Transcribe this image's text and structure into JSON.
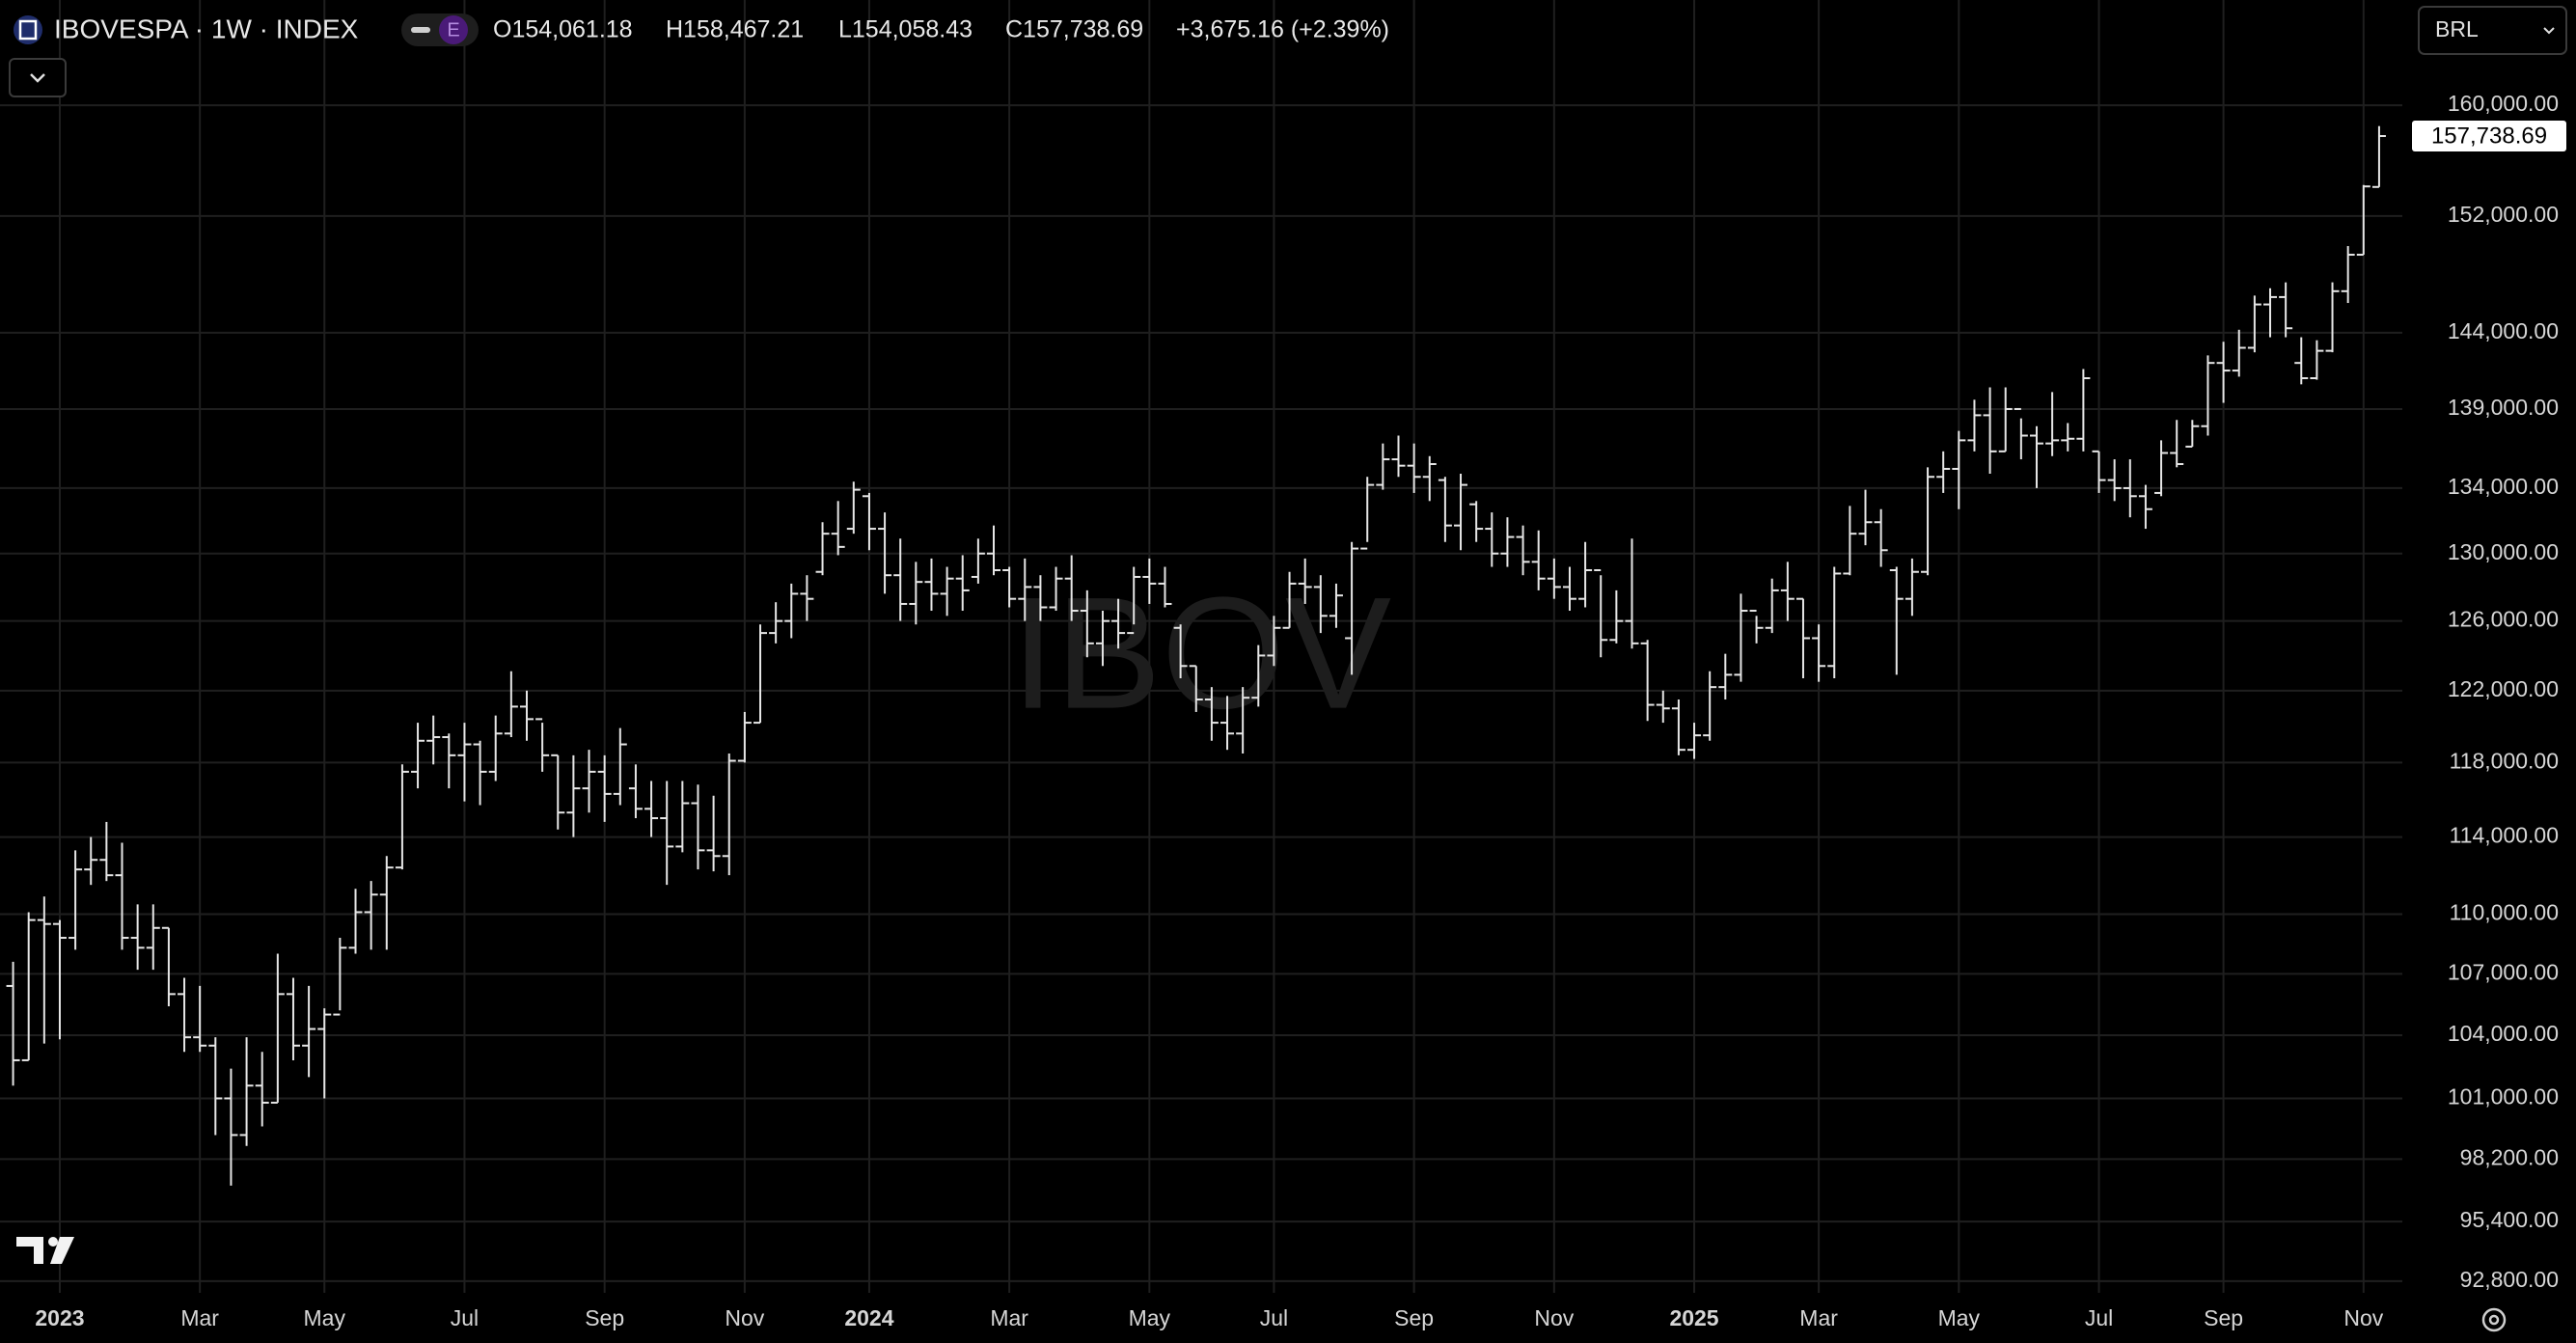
{
  "header": {
    "badge": "E",
    "ohlc": [
      "O154,061.18",
      "H158,467.21",
      "L154,058.43",
      "C157,738.69"
    ],
    "change": "+3,675.16 (+2.39%)",
    "currency": "BRL",
    "watermark": "IBOV"
  },
  "chart_data": {
    "type": "ohlc",
    "title": "IBOVESPA · 1W · INDEX",
    "color": "#e6e6e6",
    "log_scale": true,
    "grid": true,
    "last_value_label": "157,738.69",
    "categories": [
      null,
      null,
      null,
      "2023",
      null,
      null,
      null,
      null,
      null,
      null,
      null,
      null,
      "Mar",
      null,
      null,
      null,
      null,
      null,
      null,
      null,
      "May",
      null,
      null,
      null,
      null,
      null,
      null,
      null,
      null,
      "Jul",
      null,
      null,
      null,
      null,
      null,
      null,
      null,
      null,
      "Sep",
      null,
      null,
      null,
      null,
      null,
      null,
      null,
      null,
      "Nov",
      null,
      null,
      null,
      null,
      null,
      null,
      null,
      "2024",
      null,
      null,
      null,
      null,
      null,
      null,
      null,
      null,
      "Mar",
      null,
      null,
      null,
      null,
      null,
      null,
      null,
      null,
      "May",
      null,
      null,
      null,
      null,
      null,
      null,
      null,
      "Jul",
      null,
      null,
      null,
      null,
      null,
      null,
      null,
      null,
      "Sep",
      null,
      null,
      null,
      null,
      null,
      null,
      null,
      null,
      "Nov",
      null,
      null,
      null,
      null,
      null,
      null,
      null,
      null,
      "2025",
      null,
      null,
      null,
      null,
      null,
      null,
      null,
      "Mar",
      null,
      null,
      null,
      null,
      null,
      null,
      null,
      null,
      "May",
      null,
      null,
      null,
      null,
      null,
      null,
      null,
      null,
      "Jul",
      null,
      null,
      null,
      null,
      null,
      null,
      null,
      "Sep",
      null,
      null,
      null,
      null,
      null,
      null,
      null,
      null,
      "Nov",
      null
    ],
    "open": [
      106400,
      102800,
      109700,
      109500,
      108800,
      112300,
      112800,
      112000,
      108800,
      108300,
      109300,
      106000,
      103900,
      103500,
      101000,
      99300,
      101600,
      100800,
      106000,
      103500,
      104300,
      105000,
      108300,
      110100,
      111000,
      112400,
      117500,
      119200,
      119400,
      118400,
      119000,
      117500,
      119600,
      121100,
      120400,
      118400,
      115300,
      116600,
      117500,
      116300,
      116600,
      115500,
      115000,
      113500,
      115800,
      113300,
      113000,
      118100,
      120200,
      125300,
      126000,
      127600,
      128900,
      131200,
      131500,
      133500,
      131500,
      128700,
      127000,
      128300,
      127600,
      128500,
      128600,
      130000,
      129000,
      127300,
      128000,
      126800,
      128500,
      126600,
      124700,
      126000,
      125300,
      128600,
      128200,
      125600,
      123400,
      121500,
      120200,
      119600,
      121600,
      124000,
      125600,
      128200,
      128000,
      126300,
      125000,
      130300,
      134200,
      135800,
      135400,
      134700,
      134500,
      131700,
      133000,
      131500,
      130000,
      131000,
      129500,
      128500,
      128000,
      127300,
      129000,
      124900,
      126000,
      124700,
      121200,
      121000,
      118700,
      119500,
      122200,
      122900,
      126600,
      125600,
      127800,
      127300,
      125000,
      123400,
      128800,
      131200,
      131900,
      129000,
      127300,
      128900,
      134700,
      135200,
      137000,
      138600,
      136300,
      139000,
      137300,
      136800,
      137000,
      137100,
      136300,
      134500,
      134000,
      133500,
      133700,
      136200,
      136600,
      137900,
      142000,
      141500,
      143000,
      145900,
      146400,
      142000,
      141000,
      142800,
      146800,
      149300,
      154061.18
    ],
    "high": [
      107600,
      110100,
      110900,
      109700,
      113300,
      114000,
      114800,
      113700,
      110500,
      110500,
      109300,
      106800,
      106400,
      103900,
      102400,
      103900,
      103200,
      108000,
      106800,
      106400,
      105300,
      108800,
      111300,
      111700,
      113000,
      117900,
      120200,
      120600,
      119600,
      120200,
      119200,
      120600,
      123100,
      122000,
      120200,
      118400,
      118400,
      118700,
      118400,
      119900,
      117900,
      117000,
      117000,
      117000,
      116800,
      116200,
      118500,
      120800,
      125800,
      127100,
      128200,
      128700,
      131900,
      133200,
      134400,
      133700,
      132500,
      130900,
      129500,
      129700,
      129200,
      129900,
      130900,
      131700,
      129200,
      129700,
      128700,
      129200,
      129900,
      127800,
      126600,
      127300,
      129200,
      129700,
      129200,
      125800,
      123400,
      122200,
      121700,
      122200,
      124600,
      126300,
      128900,
      129700,
      128700,
      128200,
      130700,
      134700,
      136800,
      137300,
      136800,
      136000,
      134700,
      134900,
      133200,
      132500,
      132200,
      131700,
      131400,
      129700,
      129200,
      130700,
      128700,
      127800,
      130900,
      124900,
      122000,
      121500,
      120200,
      123100,
      124100,
      127600,
      126300,
      128500,
      129500,
      127300,
      125800,
      129200,
      132900,
      133900,
      132700,
      129200,
      129700,
      135300,
      136300,
      137600,
      139600,
      140400,
      140400,
      138400,
      137900,
      140100,
      138100,
      141600,
      136300,
      135800,
      135800,
      134200,
      137000,
      138300,
      138300,
      142500,
      143400,
      144200,
      146500,
      147000,
      147400,
      143700,
      143500,
      147400,
      149900,
      154200,
      158467.21
    ],
    "low": [
      101600,
      102800,
      103600,
      103800,
      108200,
      111500,
      111700,
      108200,
      107200,
      107200,
      105400,
      103200,
      103200,
      99300,
      97000,
      98800,
      99700,
      100800,
      102800,
      102000,
      101000,
      105200,
      108000,
      108200,
      108200,
      112300,
      116600,
      117900,
      116600,
      115900,
      115700,
      117000,
      119400,
      119200,
      117500,
      114400,
      114000,
      115300,
      114800,
      115700,
      115000,
      114000,
      111500,
      113200,
      112300,
      112200,
      112000,
      118000,
      120200,
      124700,
      125000,
      126000,
      128700,
      129900,
      131200,
      130200,
      127600,
      126000,
      125800,
      126600,
      126300,
      126600,
      128200,
      128700,
      126800,
      126000,
      126000,
      126600,
      126000,
      123900,
      123400,
      124400,
      125800,
      127000,
      126800,
      122700,
      120800,
      119200,
      118700,
      118500,
      121100,
      123400,
      125600,
      127000,
      125300,
      125600,
      122900,
      130700,
      133900,
      134700,
      133700,
      133200,
      130700,
      130200,
      130700,
      129200,
      129200,
      128700,
      127800,
      127300,
      126600,
      126800,
      123900,
      124700,
      124400,
      120300,
      120200,
      118400,
      118200,
      119200,
      121500,
      122500,
      124700,
      125300,
      126000,
      122700,
      122500,
      122700,
      128700,
      130500,
      129200,
      122900,
      126300,
      128700,
      133700,
      132700,
      136300,
      134900,
      136300,
      135800,
      134000,
      136000,
      136300,
      136300,
      133700,
      133200,
      132200,
      131500,
      133500,
      135300,
      136600,
      137300,
      139400,
      141100,
      142700,
      143700,
      143700,
      140600,
      140900,
      142700,
      146000,
      149300,
      154058.43
    ],
    "close": [
      102800,
      109700,
      109500,
      108800,
      112300,
      112800,
      112000,
      108800,
      108300,
      109300,
      106000,
      103900,
      103500,
      101000,
      99300,
      101600,
      100800,
      106000,
      103500,
      104300,
      105000,
      108300,
      110100,
      111000,
      112400,
      117500,
      119200,
      119400,
      118400,
      119000,
      117500,
      119600,
      121100,
      120400,
      118400,
      115300,
      116600,
      117500,
      116300,
      119000,
      115500,
      115000,
      113500,
      115800,
      113300,
      113000,
      118100,
      120200,
      125300,
      126000,
      127600,
      127300,
      131200,
      130400,
      133900,
      131500,
      128700,
      127000,
      128300,
      127600,
      128500,
      127800,
      130000,
      129000,
      127300,
      128000,
      126800,
      128500,
      126600,
      124700,
      126000,
      125300,
      128600,
      128200,
      127000,
      123400,
      121500,
      120200,
      119600,
      121600,
      124000,
      125600,
      128200,
      128000,
      126300,
      127500,
      130300,
      134200,
      135800,
      135400,
      134700,
      135500,
      131700,
      134200,
      131500,
      130000,
      131000,
      129500,
      128500,
      128000,
      127300,
      129000,
      124900,
      126000,
      124700,
      121200,
      121000,
      118700,
      119500,
      122200,
      122900,
      126600,
      125600,
      127800,
      127300,
      125000,
      123400,
      128800,
      131200,
      131900,
      130200,
      127300,
      128900,
      134700,
      135200,
      137000,
      138600,
      136300,
      139000,
      137300,
      136800,
      137000,
      137100,
      141000,
      134500,
      134000,
      133500,
      132700,
      136200,
      135500,
      137900,
      142000,
      141500,
      143000,
      145900,
      146400,
      144300,
      141000,
      142800,
      146800,
      149300,
      154100,
      157738.69
    ],
    "ylim": [
      92300,
      168000
    ],
    "yticks": [
      {
        "value": 160000,
        "label": "160,000.00"
      },
      {
        "value": 152000,
        "label": "152,000.00"
      },
      {
        "value": 144000,
        "label": "144,000.00"
      },
      {
        "value": 139000,
        "label": "139,000.00"
      },
      {
        "value": 134000,
        "label": "134,000.00"
      },
      {
        "value": 130000,
        "label": "130,000.00"
      },
      {
        "value": 126000,
        "label": "126,000.00"
      },
      {
        "value": 122000,
        "label": "122,000.00"
      },
      {
        "value": 118000,
        "label": "118,000.00"
      },
      {
        "value": 114000,
        "label": "114,000.00"
      },
      {
        "value": 110000,
        "label": "110,000.00"
      },
      {
        "value": 107000,
        "label": "107,000.00"
      },
      {
        "value": 104000,
        "label": "104,000.00"
      },
      {
        "value": 101000,
        "label": "101,000.00"
      },
      {
        "value": 98200,
        "label": "98,200.00"
      },
      {
        "value": 95400,
        "label": "95,400.00"
      },
      {
        "value": 92800,
        "label": "92,800.00"
      }
    ]
  }
}
